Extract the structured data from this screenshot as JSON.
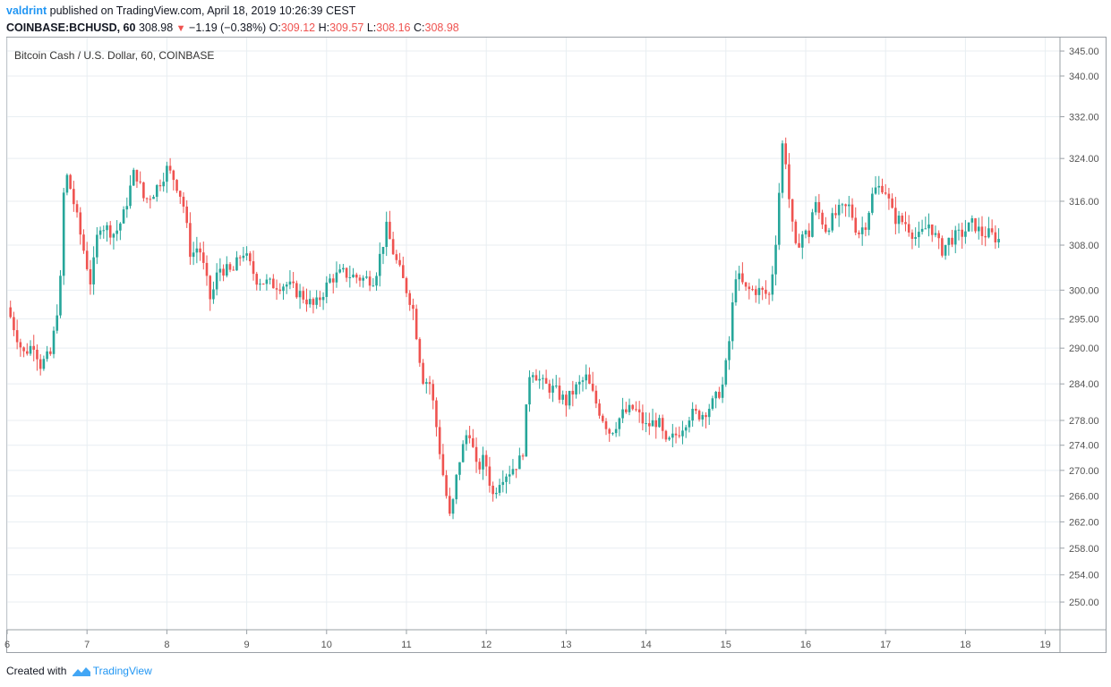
{
  "header": {
    "username": "valdrint",
    "published_text": "published on TradingView.com, April 18, 2019 10:26:39 CEST",
    "symbol": "COINBASE:BCHUSD, 60",
    "last": "308.98",
    "change": "−1.19 (−0.38%)",
    "o_label": "O:",
    "o_value": "309.12",
    "h_label": "H:",
    "h_value": "309.57",
    "l_label": "L:",
    "l_value": "308.16",
    "c_label": "C:",
    "c_value": "308.98"
  },
  "footer": {
    "created_with": "Created with",
    "brand": "TradingView"
  },
  "colors": {
    "up": "#26a69a",
    "down": "#ef5350",
    "grid": "#e8eef2",
    "axis_text": "#555555",
    "brand": "#2196f3"
  },
  "chart_data": {
    "type": "candlestick",
    "title": "Bitcoin Cash / U.S. Dollar, 60, COINBASE",
    "y_ticks": [
      "345.00",
      "340.00",
      "332.00",
      "324.00",
      "316.00",
      "308.00",
      "300.00",
      "295.00",
      "290.00",
      "284.00",
      "278.00",
      "274.00",
      "270.00",
      "266.00",
      "262.00",
      "258.00",
      "254.00",
      "250.00"
    ],
    "x_ticks": [
      "6",
      "7",
      "8",
      "9",
      "10",
      "11",
      "12",
      "13",
      "14",
      "15",
      "16",
      "17",
      "18",
      "19"
    ],
    "y_scale": "log",
    "ylim": [
      246.5,
      347
    ],
    "xlim": [
      6.0,
      19.15
    ],
    "grid": true,
    "anchors": [
      [
        6.0,
        297
      ],
      [
        6.2,
        289
      ],
      [
        6.35,
        291
      ],
      [
        6.4,
        287
      ],
      [
        6.55,
        289
      ],
      [
        6.62,
        296
      ],
      [
        6.67,
        302
      ],
      [
        6.72,
        322
      ],
      [
        6.8,
        318
      ],
      [
        6.93,
        309
      ],
      [
        7.05,
        301
      ],
      [
        7.15,
        312
      ],
      [
        7.35,
        310
      ],
      [
        7.45,
        313
      ],
      [
        7.6,
        322
      ],
      [
        7.72,
        316
      ],
      [
        7.85,
        318
      ],
      [
        8.0,
        322
      ],
      [
        8.1,
        320
      ],
      [
        8.2,
        316
      ],
      [
        8.3,
        306
      ],
      [
        8.4,
        308
      ],
      [
        8.55,
        298
      ],
      [
        8.65,
        304
      ],
      [
        8.82,
        303
      ],
      [
        8.95,
        307
      ],
      [
        9.12,
        302
      ],
      [
        9.3,
        301
      ],
      [
        9.5,
        301
      ],
      [
        9.7,
        299
      ],
      [
        9.85,
        297
      ],
      [
        10.05,
        302
      ],
      [
        10.2,
        303
      ],
      [
        10.45,
        302
      ],
      [
        10.6,
        302
      ],
      [
        10.75,
        311
      ],
      [
        10.85,
        306
      ],
      [
        10.95,
        302
      ],
      [
        11.08,
        297
      ],
      [
        11.2,
        285
      ],
      [
        11.3,
        284
      ],
      [
        11.45,
        270
      ],
      [
        11.55,
        262
      ],
      [
        11.65,
        271
      ],
      [
        11.78,
        277
      ],
      [
        11.88,
        270
      ],
      [
        11.98,
        272
      ],
      [
        12.08,
        266
      ],
      [
        12.18,
        269
      ],
      [
        12.3,
        270
      ],
      [
        12.45,
        272
      ],
      [
        12.55,
        287
      ],
      [
        12.7,
        284
      ],
      [
        12.85,
        283
      ],
      [
        13.0,
        281
      ],
      [
        13.1,
        283
      ],
      [
        13.25,
        285
      ],
      [
        13.4,
        280
      ],
      [
        13.55,
        276
      ],
      [
        13.7,
        279
      ],
      [
        13.85,
        280
      ],
      [
        14.0,
        277
      ],
      [
        14.15,
        278
      ],
      [
        14.25,
        274
      ],
      [
        14.4,
        276
      ],
      [
        14.55,
        279
      ],
      [
        14.7,
        279
      ],
      [
        14.85,
        281
      ],
      [
        14.97,
        284
      ],
      [
        15.05,
        292
      ],
      [
        15.12,
        303
      ],
      [
        15.25,
        300
      ],
      [
        15.4,
        300
      ],
      [
        15.55,
        299
      ],
      [
        15.62,
        308
      ],
      [
        15.72,
        329
      ],
      [
        15.8,
        315
      ],
      [
        15.87,
        307
      ],
      [
        15.95,
        310
      ],
      [
        16.05,
        310
      ],
      [
        16.1,
        316
      ],
      [
        16.25,
        311
      ],
      [
        16.4,
        314
      ],
      [
        16.55,
        315
      ],
      [
        16.65,
        310
      ],
      [
        16.75,
        312
      ],
      [
        16.85,
        318
      ],
      [
        16.98,
        319
      ],
      [
        17.1,
        313
      ],
      [
        17.25,
        312
      ],
      [
        17.4,
        309
      ],
      [
        17.55,
        312
      ],
      [
        17.7,
        307
      ],
      [
        17.8,
        309
      ],
      [
        17.95,
        310
      ],
      [
        18.1,
        312
      ],
      [
        18.2,
        310
      ],
      [
        18.3,
        310
      ],
      [
        18.42,
        308.98
      ]
    ]
  }
}
